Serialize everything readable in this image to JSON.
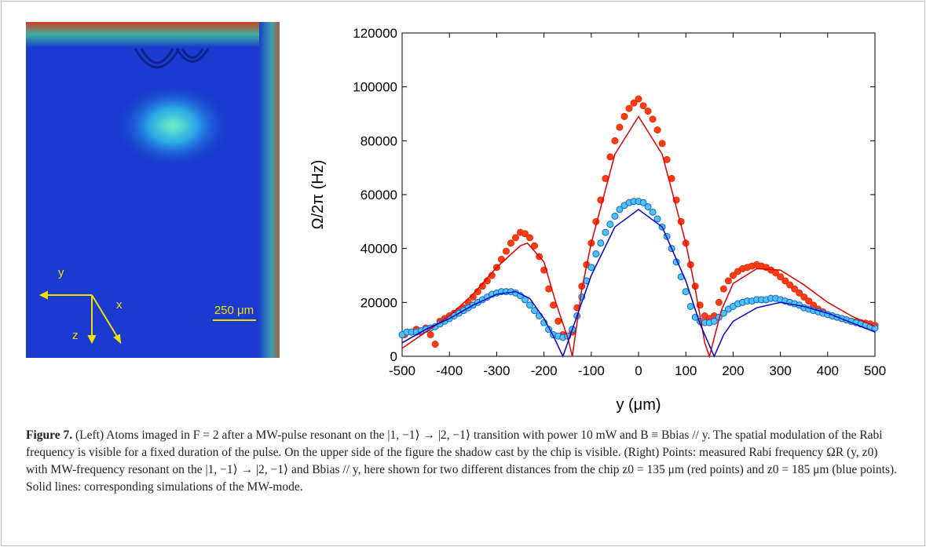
{
  "image": {
    "axis_y": "y",
    "axis_x": "x",
    "axis_z": "z",
    "scale_bar": "250 μm"
  },
  "chart_data": {
    "type": "scatter",
    "x_label": "y (μm)",
    "y_label": "Ω/2π (Hz)",
    "xlim": [
      -500,
      500
    ],
    "ylim": [
      0,
      120000
    ],
    "xticks": [
      -500,
      -400,
      -300,
      -200,
      -100,
      0,
      100,
      200,
      300,
      400,
      500
    ],
    "yticks": [
      0,
      20000,
      40000,
      60000,
      80000,
      100000,
      120000
    ],
    "series": [
      {
        "mark": "line",
        "color": "#e00000",
        "x": [
          -500,
          -450,
          -400,
          -350,
          -300,
          -250,
          -235,
          -200,
          -175,
          -150,
          -140,
          -120,
          -100,
          -50,
          0,
          50,
          100,
          120,
          140,
          150,
          175,
          200,
          250,
          300,
          350,
          400,
          450,
          500
        ],
        "values": [
          3000,
          9000,
          15000,
          23000,
          33000,
          41000,
          42000,
          35000,
          20000,
          7000,
          0,
          25000,
          42000,
          75000,
          89000,
          75000,
          42000,
          25000,
          5000,
          0,
          17000,
          27000,
          32500,
          32000,
          26500,
          20000,
          15000,
          11000
        ]
      },
      {
        "mark": "line",
        "color": "#0000cc",
        "x": [
          -500,
          -450,
          -400,
          -350,
          -300,
          -260,
          -230,
          -200,
          -180,
          -160,
          -140,
          -120,
          -100,
          -50,
          0,
          50,
          100,
          130,
          160,
          180,
          200,
          250,
          300,
          350,
          400,
          450,
          500
        ],
        "values": [
          5000,
          10000,
          14000,
          19000,
          23000,
          24000,
          21500,
          14000,
          7500,
          0,
          10000,
          20000,
          30000,
          48000,
          54500,
          48000,
          28000,
          12000,
          0,
          8000,
          13000,
          18000,
          20000,
          18500,
          16000,
          12500,
          9000
        ]
      },
      {
        "mark": "marker",
        "color": "#ff3b1a",
        "edge": "#e03000",
        "x": [
          -495,
          -480,
          -470,
          -460,
          -450,
          -440,
          -430,
          -420,
          -410,
          -400,
          -390,
          -380,
          -370,
          -360,
          -350,
          -340,
          -330,
          -320,
          -310,
          -300,
          -290,
          -280,
          -270,
          -260,
          -250,
          -240,
          -230,
          -220,
          -210,
          -200,
          -190,
          -180,
          -170,
          -160,
          -150,
          -140,
          -130,
          -120,
          -110,
          -100,
          -90,
          -80,
          -70,
          -60,
          -50,
          -40,
          -30,
          -20,
          -10,
          0,
          10,
          20,
          30,
          40,
          50,
          60,
          70,
          80,
          90,
          100,
          110,
          120,
          130,
          140,
          150,
          160,
          170,
          180,
          190,
          200,
          210,
          220,
          230,
          240,
          250,
          260,
          270,
          280,
          290,
          300,
          310,
          320,
          330,
          340,
          350,
          360,
          370,
          380,
          390,
          400,
          410,
          420,
          430,
          440,
          450,
          460,
          470,
          480,
          490,
          500
        ],
        "values": [
          8000,
          9000,
          10000,
          9000,
          10500,
          8000,
          4500,
          13000,
          14000,
          15000,
          16000,
          17000,
          18000,
          20000,
          22000,
          24000,
          26000,
          28000,
          30000,
          33000,
          36000,
          39000,
          42000,
          44000,
          46000,
          45500,
          44000,
          41000,
          37000,
          32000,
          25000,
          19000,
          13000,
          8000,
          7500,
          9000,
          18000,
          26000,
          34000,
          42000,
          50000,
          58000,
          66000,
          74000,
          80000,
          85000,
          89000,
          92000,
          94000,
          95500,
          93000,
          91000,
          88000,
          84000,
          79000,
          73000,
          66000,
          58000,
          50000,
          42000,
          34000,
          26000,
          19000,
          15000,
          14000,
          15000,
          20000,
          25000,
          28000,
          30000,
          31500,
          32500,
          33000,
          33500,
          34000,
          33500,
          33000,
          32000,
          31000,
          29500,
          28000,
          26500,
          25000,
          23500,
          22000,
          20500,
          19000,
          17500,
          16500,
          15500,
          15000,
          14500,
          14000,
          13500,
          13000,
          12800,
          12500,
          12300,
          12000,
          11500
        ]
      },
      {
        "mark": "marker",
        "color": "#4fc3f7",
        "edge": "#1565c0",
        "x": [
          -500,
          -490,
          -480,
          -470,
          -460,
          -450,
          -440,
          -430,
          -420,
          -410,
          -400,
          -390,
          -380,
          -370,
          -360,
          -350,
          -340,
          -330,
          -320,
          -310,
          -300,
          -290,
          -280,
          -270,
          -260,
          -250,
          -240,
          -230,
          -220,
          -210,
          -200,
          -190,
          -180,
          -170,
          -160,
          -150,
          -140,
          -130,
          -120,
          -110,
          -100,
          -90,
          -80,
          -70,
          -60,
          -50,
          -40,
          -30,
          -20,
          -10,
          0,
          10,
          20,
          30,
          40,
          50,
          60,
          70,
          80,
          90,
          100,
          110,
          120,
          130,
          140,
          150,
          160,
          170,
          180,
          190,
          200,
          210,
          220,
          230,
          240,
          250,
          260,
          270,
          280,
          290,
          300,
          310,
          320,
          330,
          340,
          350,
          360,
          370,
          380,
          390,
          400,
          410,
          420,
          430,
          440,
          450,
          460,
          470,
          480,
          490,
          500
        ],
        "values": [
          8000,
          9000,
          9000,
          9000,
          9500,
          10000,
          10500,
          11000,
          12000,
          13000,
          14000,
          15000,
          16000,
          17000,
          18000,
          19000,
          20000,
          21000,
          22000,
          23000,
          23500,
          24000,
          24000,
          24000,
          23500,
          22500,
          21000,
          19000,
          17000,
          15000,
          12500,
          10000,
          8000,
          7500,
          7000,
          7500,
          10000,
          15000,
          22000,
          28000,
          33000,
          38000,
          42000,
          46000,
          49000,
          52000,
          54500,
          56000,
          57000,
          57500,
          57500,
          57000,
          55500,
          53500,
          51000,
          48000,
          44500,
          40000,
          35000,
          29500,
          24000,
          18500,
          14500,
          13000,
          12500,
          12500,
          13000,
          14500,
          16000,
          17500,
          18500,
          19500,
          20000,
          20500,
          20500,
          21000,
          21000,
          21000,
          21500,
          21500,
          21000,
          20500,
          20000,
          19500,
          19000,
          18000,
          17500,
          17000,
          16500,
          16000,
          15500,
          15000,
          14500,
          14000,
          13500,
          13000,
          12500,
          12000,
          11500,
          11000,
          10500
        ]
      }
    ]
  },
  "caption": {
    "label": "Figure 7.",
    "text": "(Left) Atoms imaged in F = 2 after a MW-pulse resonant on the |1, −1⟩ → |2, −1⟩ transition with power 10 mW and B ≡ Bbias // y. The spatial modulation of the Rabi frequency is visible for a fixed duration of the pulse. On the upper side of the figure the shadow cast by the chip is visible. (Right) Points: measured Rabi frequency ΩR (y, z0) with MW-frequency resonant on the |1, −1⟩ → |2, −1⟩ and Bbias // y, here shown for two different distances from the chip z0 = 135 μm (red points) and z0 = 185 μm (blue points). Solid lines: corresponding simulations of the MW-mode."
  }
}
